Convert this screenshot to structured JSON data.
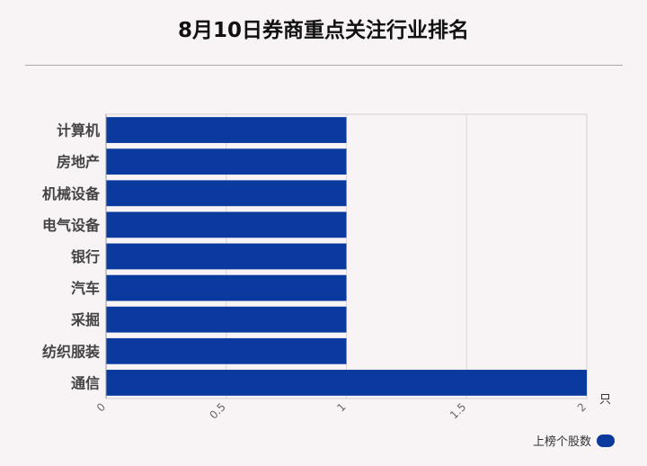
{
  "title": "8月10日券商重点关注行业排名",
  "chart_data": {
    "type": "bar",
    "orientation": "horizontal",
    "categories": [
      "计算机",
      "房地产",
      "机械设备",
      "电气设备",
      "银行",
      "汽车",
      "采掘",
      "纺织服装",
      "通信"
    ],
    "series": [
      {
        "name": "上榜个股数",
        "values": [
          1,
          1,
          1,
          1,
          1,
          1,
          1,
          1,
          2
        ]
      }
    ],
    "xlim": [
      0,
      2
    ],
    "xticks": [
      "0",
      "0.5",
      "1",
      "1.5",
      "2"
    ],
    "xunit": "只",
    "color": "#0b3a9e",
    "grid": true,
    "legend": "bottom-right"
  }
}
